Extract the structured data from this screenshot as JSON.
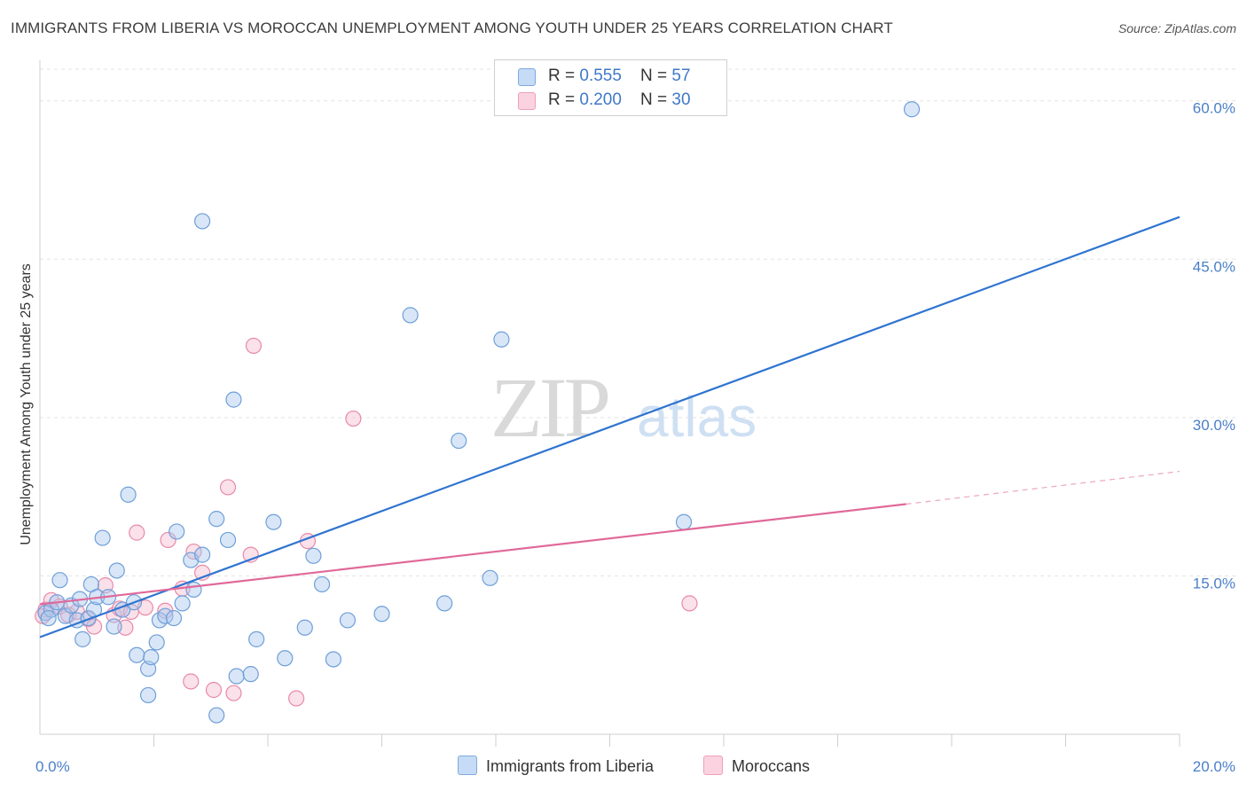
{
  "title": "IMMIGRANTS FROM LIBERIA VS MOROCCAN UNEMPLOYMENT AMONG YOUTH UNDER 25 YEARS CORRELATION CHART",
  "source": "Source: ZipAtlas.com",
  "watermark": {
    "zip": "ZIP",
    "atlas": "atlas"
  },
  "legend": {
    "rows": [
      {
        "r_label": "R = ",
        "r_value": "0.555",
        "n_label": "N = ",
        "n_value": "57"
      },
      {
        "r_label": "R = ",
        "r_value": "0.200",
        "n_label": "N = ",
        "n_value": "30"
      }
    ]
  },
  "colors": {
    "blue_fill": "#a8c8ee",
    "blue_stroke": "#6f9fd8",
    "blue_line": "#2f74d0",
    "pink_fill": "#f5bcd0",
    "pink_stroke": "#e88aaa",
    "pink_line": "#e0699a",
    "grid": "#e3e3e3",
    "tick_text": "#4a7fc9"
  },
  "chart_data": {
    "type": "scatter",
    "xlabel": "",
    "ylabel": "Unemployment Among Youth under 25 years",
    "xlim": [
      0,
      20
    ],
    "ylim": [
      0,
      63
    ],
    "x_tick_labels": [
      {
        "value": 0,
        "label": "0.0%"
      },
      {
        "value": 20,
        "label": "20.0%"
      }
    ],
    "x_minor_ticks": [
      2,
      4,
      6,
      8,
      10,
      12,
      14,
      16,
      18,
      20
    ],
    "y_ticks": [
      {
        "value": 15,
        "label": "15.0%"
      },
      {
        "value": 30,
        "label": "30.0%"
      },
      {
        "value": 45,
        "label": "45.0%"
      },
      {
        "value": 60,
        "label": "60.0%"
      }
    ],
    "grid": true,
    "legend_position": "top-center",
    "series": [
      {
        "name": "Immigrants from Liberia",
        "points": [
          [
            0.1,
            11.5
          ],
          [
            0.2,
            11.8
          ],
          [
            0.3,
            12.5
          ],
          [
            0.35,
            14.6
          ],
          [
            0.45,
            11.2
          ],
          [
            0.55,
            12.2
          ],
          [
            0.65,
            10.8
          ],
          [
            0.7,
            12.8
          ],
          [
            0.75,
            9.0
          ],
          [
            0.85,
            11.0
          ],
          [
            0.9,
            14.2
          ],
          [
            0.95,
            11.8
          ],
          [
            1.0,
            13.0
          ],
          [
            1.1,
            18.6
          ],
          [
            1.2,
            13.0
          ],
          [
            1.3,
            10.2
          ],
          [
            1.35,
            15.5
          ],
          [
            1.45,
            11.8
          ],
          [
            1.55,
            22.7
          ],
          [
            1.65,
            12.5
          ],
          [
            1.7,
            7.5
          ],
          [
            1.9,
            6.2
          ],
          [
            1.9,
            3.7
          ],
          [
            1.95,
            7.3
          ],
          [
            2.05,
            8.7
          ],
          [
            2.1,
            10.8
          ],
          [
            2.2,
            11.2
          ],
          [
            2.35,
            11.0
          ],
          [
            2.4,
            19.2
          ],
          [
            2.5,
            12.4
          ],
          [
            2.65,
            16.5
          ],
          [
            2.7,
            13.7
          ],
          [
            2.85,
            48.6
          ],
          [
            2.85,
            17.0
          ],
          [
            3.1,
            20.4
          ],
          [
            3.1,
            1.8
          ],
          [
            3.3,
            18.4
          ],
          [
            3.4,
            31.7
          ],
          [
            3.45,
            5.5
          ],
          [
            3.7,
            5.7
          ],
          [
            3.8,
            9.0
          ],
          [
            4.1,
            20.1
          ],
          [
            4.3,
            7.2
          ],
          [
            4.65,
            10.1
          ],
          [
            4.8,
            16.9
          ],
          [
            4.95,
            14.2
          ],
          [
            5.15,
            7.1
          ],
          [
            5.4,
            10.8
          ],
          [
            6.0,
            11.4
          ],
          [
            6.5,
            39.7
          ],
          [
            7.1,
            12.4
          ],
          [
            7.35,
            27.8
          ],
          [
            7.9,
            14.8
          ],
          [
            8.1,
            37.4
          ],
          [
            11.3,
            20.1
          ],
          [
            15.3,
            59.2
          ],
          [
            0.15,
            11.0
          ]
        ],
        "trendline": {
          "x0": 0.0,
          "y0": 9.2,
          "x1": 20.0,
          "y1": 49.0
        }
      },
      {
        "name": "Moroccans",
        "points": [
          [
            0.1,
            11.8
          ],
          [
            0.2,
            12.7
          ],
          [
            0.35,
            12.1
          ],
          [
            0.5,
            11.3
          ],
          [
            0.65,
            11.6
          ],
          [
            0.85,
            10.9
          ],
          [
            0.95,
            10.2
          ],
          [
            1.15,
            14.1
          ],
          [
            1.3,
            11.3
          ],
          [
            1.4,
            11.9
          ],
          [
            1.5,
            10.1
          ],
          [
            1.6,
            11.6
          ],
          [
            1.7,
            19.1
          ],
          [
            1.85,
            12.0
          ],
          [
            2.2,
            11.7
          ],
          [
            2.25,
            18.4
          ],
          [
            2.5,
            13.8
          ],
          [
            2.65,
            5.0
          ],
          [
            2.7,
            17.3
          ],
          [
            2.85,
            15.3
          ],
          [
            3.05,
            4.2
          ],
          [
            3.3,
            23.4
          ],
          [
            3.4,
            3.9
          ],
          [
            3.7,
            17.0
          ],
          [
            3.75,
            36.8
          ],
          [
            4.5,
            3.4
          ],
          [
            4.7,
            18.3
          ],
          [
            5.5,
            29.9
          ],
          [
            11.4,
            12.4
          ],
          [
            0.05,
            11.2
          ]
        ],
        "trendline": {
          "x0": 0.0,
          "y0": 12.3,
          "x1": 15.2,
          "y1": 21.8
        },
        "trendline_dashed": {
          "x0": 15.2,
          "y0": 21.8,
          "x1": 20.0,
          "y1": 24.9
        }
      }
    ]
  }
}
